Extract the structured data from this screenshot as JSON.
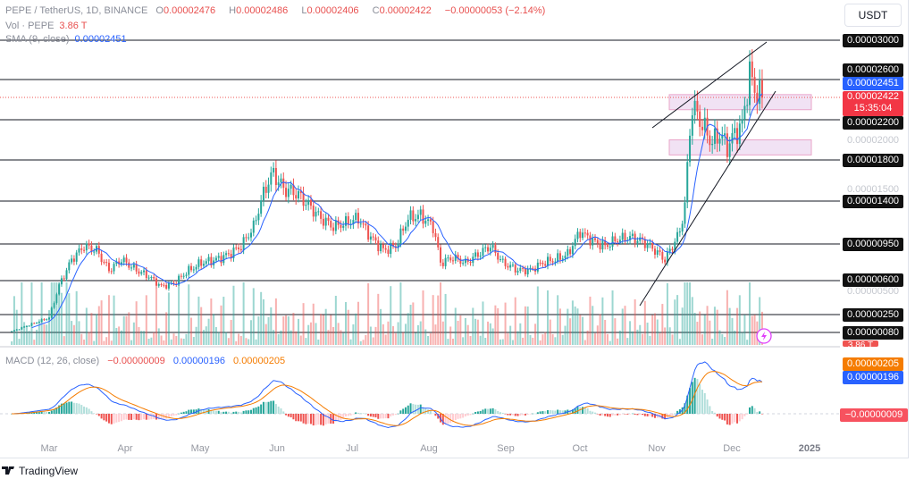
{
  "header": {
    "symbol": "PEPE / TetherUS, 1D, BINANCE",
    "open_label": "O",
    "open": "0.00002476",
    "high_label": "H",
    "high": "0.00002486",
    "low_label": "L",
    "low": "0.00002406",
    "close_label": "C",
    "close": "0.00002422",
    "change": "−0.00000053 (−2.14%)"
  },
  "volume": {
    "label": "Vol · PEPE",
    "value": "3.86 T"
  },
  "sma": {
    "label": "SMA (9, close)",
    "value": "0.00002451",
    "period": 9
  },
  "macd": {
    "label": "MACD (12, 26, close)",
    "hist": "−0.00000009",
    "macd": "0.00000196",
    "signal": "0.00000205"
  },
  "currency_button": "USDT",
  "current_price": {
    "value": "0.00002422",
    "countdown": "15:35:04"
  },
  "levels": [
    "0.00003000",
    "0.00002600",
    "0.00002200",
    "0.00001800",
    "0.00001400",
    "0.00000950",
    "0.00000600",
    "0.00000250",
    "0.00000080"
  ],
  "scale_labels": [
    "0.00002000",
    "0.00001500",
    "0.00000500"
  ],
  "time_labels": [
    "Mar",
    "Apr",
    "May",
    "Jun",
    "Jul",
    "Aug",
    "Sep",
    "Oct",
    "Nov",
    "Dec",
    "2025"
  ],
  "brand": "TradingView",
  "colors": {
    "up": "#26a69a",
    "down": "#ef5350",
    "sma": "#2962ff",
    "macd": "#2962ff",
    "signal": "#f57c00",
    "zone": "#e1bee7"
  },
  "chart_data": {
    "type": "candlestick",
    "interval": "1D",
    "closes": [
      [
        "2024-02-15",
        9e-07
      ],
      [
        "2024-03-01",
        2.2e-06
      ],
      [
        "2024-03-05",
        5.5e-06
      ],
      [
        "2024-03-10",
        8e-06
      ],
      [
        "2024-03-15",
        9.3e-06
      ],
      [
        "2024-03-20",
        8.9e-06
      ],
      [
        "2024-03-25",
        7e-06
      ],
      [
        "2024-03-30",
        8e-06
      ],
      [
        "2024-04-05",
        7e-06
      ],
      [
        "2024-04-10",
        6.4e-06
      ],
      [
        "2024-04-15",
        5.4e-06
      ],
      [
        "2024-04-20",
        5.7e-06
      ],
      [
        "2024-04-25",
        6.8e-06
      ],
      [
        "2024-05-01",
        7.7e-06
      ],
      [
        "2024-05-07",
        8e-06
      ],
      [
        "2024-05-12",
        8.5e-06
      ],
      [
        "2024-05-17",
        9.3e-06
      ],
      [
        "2024-05-22",
        1.13e-05
      ],
      [
        "2024-05-25",
        1.4e-05
      ],
      [
        "2024-05-28",
        1.6e-05
      ],
      [
        "2024-05-30",
        1.67e-05
      ],
      [
        "2024-06-03",
        1.52e-05
      ],
      [
        "2024-06-08",
        1.48e-05
      ],
      [
        "2024-06-13",
        1.36e-05
      ],
      [
        "2024-06-18",
        1.22e-05
      ],
      [
        "2024-06-23",
        1.13e-05
      ],
      [
        "2024-06-28",
        1.17e-05
      ],
      [
        "2024-07-03",
        1.22e-05
      ],
      [
        "2024-07-08",
        1.02e-05
      ],
      [
        "2024-07-13",
        8.9e-06
      ],
      [
        "2024-07-18",
        9.3e-06
      ],
      [
        "2024-07-23",
        1.22e-05
      ],
      [
        "2024-07-28",
        1.25e-05
      ],
      [
        "2024-08-02",
        1.13e-05
      ],
      [
        "2024-08-05",
        7.7e-06
      ],
      [
        "2024-08-10",
        8.2e-06
      ],
      [
        "2024-08-15",
        7.7e-06
      ],
      [
        "2024-08-20",
        8.5e-06
      ],
      [
        "2024-08-25",
        9.3e-06
      ],
      [
        "2024-08-30",
        7.7e-06
      ],
      [
        "2024-09-05",
        7e-06
      ],
      [
        "2024-09-10",
        7e-06
      ],
      [
        "2024-09-15",
        7.7e-06
      ],
      [
        "2024-09-20",
        8e-06
      ],
      [
        "2024-09-25",
        8.5e-06
      ],
      [
        "2024-09-30",
        1.08e-05
      ],
      [
        "2024-10-05",
        9.8e-06
      ],
      [
        "2024-10-10",
        9.3e-06
      ],
      [
        "2024-10-15",
        1e-05
      ],
      [
        "2024-10-20",
        1.02e-05
      ],
      [
        "2024-10-25",
        9.8e-06
      ],
      [
        "2024-10-30",
        8.9e-06
      ],
      [
        "2024-11-03",
        8e-06
      ],
      [
        "2024-11-06",
        9.3e-06
      ],
      [
        "2024-11-09",
        1.08e-05
      ],
      [
        "2024-11-11",
        1.36e-05
      ],
      [
        "2024-11-13",
        2.08e-05
      ],
      [
        "2024-11-14",
        2.34e-05
      ],
      [
        "2024-11-18",
        2.15e-05
      ],
      [
        "2024-11-22",
        1.97e-05
      ],
      [
        "2024-11-25",
        2.06e-05
      ],
      [
        "2024-11-28",
        1.93e-05
      ],
      [
        "2024-12-01",
        2.06e-05
      ],
      [
        "2024-12-04",
        2.15e-05
      ],
      [
        "2024-12-07",
        2.67e-05
      ],
      [
        "2024-12-09",
        2.5e-05
      ],
      [
        "2024-12-12",
        2.42e-05
      ]
    ],
    "zones": [
      [
        "0.00002300",
        "0.00002450"
      ],
      [
        "0.00001850",
        "0.00002000"
      ]
    ]
  }
}
